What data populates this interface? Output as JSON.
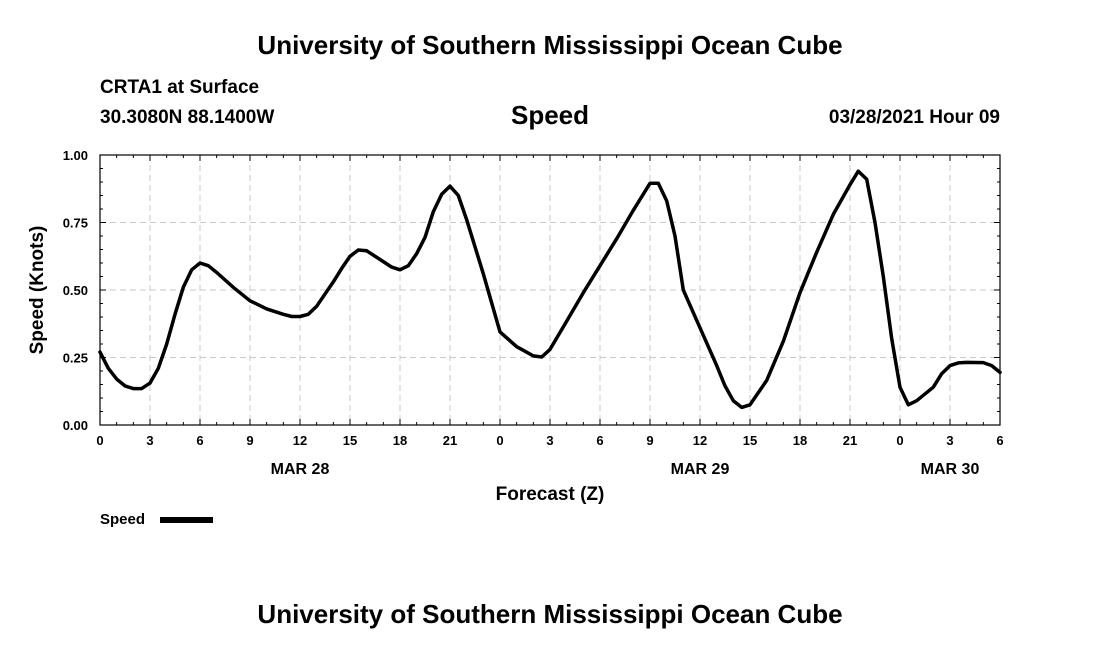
{
  "banner": {
    "top": "University of Southern Mississippi Ocean Cube",
    "bottom": "University of Southern Mississippi Ocean Cube"
  },
  "station": {
    "name": "CRTA1 at Surface",
    "coords": "30.3080N  88.1400W",
    "datetime": "03/28/2021 Hour 09",
    "variable": "Speed"
  },
  "chart_data": {
    "type": "line",
    "title": "Speed",
    "xlabel": "Forecast (Z)",
    "ylabel": "Speed (Knots)",
    "xlim": [
      0,
      54
    ],
    "ylim": [
      0,
      1
    ],
    "grid": true,
    "legend_position": "bottom-left",
    "x_ticks": [
      0,
      3,
      6,
      9,
      12,
      15,
      18,
      21,
      24,
      27,
      30,
      33,
      36,
      39,
      42,
      45,
      48,
      51,
      54
    ],
    "x_tick_labels": [
      "0",
      "3",
      "6",
      "9",
      "12",
      "15",
      "18",
      "21",
      "0",
      "3",
      "6",
      "9",
      "12",
      "15",
      "18",
      "21",
      "0",
      "3",
      "6"
    ],
    "y_ticks": [
      0,
      0.25,
      0.5,
      0.75,
      1.0
    ],
    "y_tick_labels": [
      "0.00",
      "0.25",
      "0.50",
      "0.75",
      "1.00"
    ],
    "day_labels": [
      {
        "x": 12,
        "label": "MAR 28"
      },
      {
        "x": 36,
        "label": "MAR 29"
      },
      {
        "x": 51,
        "label": "MAR 30"
      }
    ],
    "series": [
      {
        "name": "Speed",
        "color": "#000000",
        "x": [
          0,
          0.5,
          1,
          1.5,
          2,
          2.5,
          3,
          3.5,
          4,
          4.5,
          5,
          5.5,
          6,
          6.5,
          7,
          8,
          9,
          10,
          11,
          11.5,
          12,
          12.5,
          13,
          14,
          14.5,
          15,
          15.5,
          16,
          17,
          17.5,
          18,
          18.5,
          19,
          19.5,
          20,
          20.5,
          21,
          21.5,
          22,
          23,
          24,
          25,
          26,
          26.5,
          27,
          28,
          29,
          30,
          31,
          32,
          33,
          33.5,
          34,
          34.5,
          35,
          36,
          37,
          37.5,
          38,
          38.5,
          39,
          40,
          41,
          42,
          43,
          44,
          45,
          45.5,
          46,
          46.5,
          47,
          47.5,
          48,
          48.5,
          49,
          50,
          50.5,
          51,
          51.5,
          52,
          53,
          53.5,
          54
        ],
        "y": [
          0.27,
          0.21,
          0.17,
          0.145,
          0.135,
          0.135,
          0.155,
          0.21,
          0.3,
          0.41,
          0.51,
          0.575,
          0.6,
          0.59,
          0.565,
          0.51,
          0.46,
          0.43,
          0.41,
          0.402,
          0.402,
          0.41,
          0.44,
          0.53,
          0.58,
          0.625,
          0.648,
          0.645,
          0.605,
          0.585,
          0.575,
          0.59,
          0.635,
          0.695,
          0.79,
          0.855,
          0.885,
          0.85,
          0.76,
          0.56,
          0.345,
          0.29,
          0.256,
          0.252,
          0.28,
          0.385,
          0.49,
          0.59,
          0.69,
          0.795,
          0.895,
          0.895,
          0.83,
          0.7,
          0.5,
          0.36,
          0.22,
          0.145,
          0.09,
          0.065,
          0.075,
          0.165,
          0.31,
          0.49,
          0.64,
          0.78,
          0.89,
          0.94,
          0.91,
          0.75,
          0.55,
          0.32,
          0.14,
          0.075,
          0.09,
          0.14,
          0.19,
          0.22,
          0.23,
          0.232,
          0.231,
          0.22,
          0.195
        ]
      }
    ]
  }
}
